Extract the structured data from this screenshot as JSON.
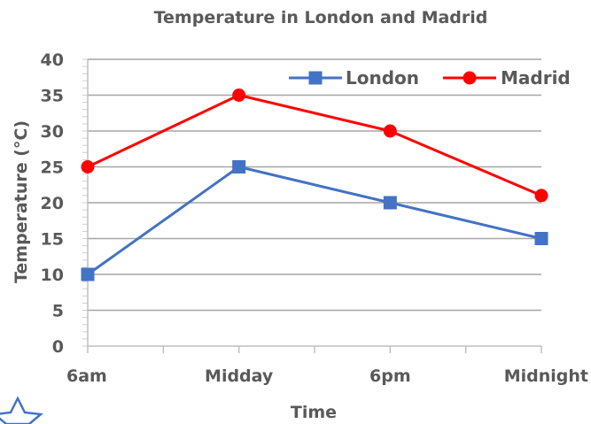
{
  "chart_data": {
    "type": "line",
    "title": "Temperature in London and Madrid",
    "xlabel": "Time",
    "ylabel": "Temperature (°C)",
    "categories": [
      "6am",
      "Midday",
      "6pm",
      "Midnight"
    ],
    "ylim": [
      0,
      40
    ],
    "yticks": [
      0,
      5,
      10,
      15,
      20,
      25,
      30,
      35,
      40
    ],
    "grid": true,
    "legend_position": "top-right",
    "series": [
      {
        "name": "London",
        "values": [
          10,
          25,
          20,
          15
        ],
        "color": "#4472c4",
        "marker": "square"
      },
      {
        "name": "Madrid",
        "values": [
          25,
          35,
          30,
          21
        ],
        "color": "#ff0000",
        "marker": "circle"
      }
    ]
  },
  "decoration": {
    "icon": "star-outline-icon",
    "color": "#4472c4"
  }
}
